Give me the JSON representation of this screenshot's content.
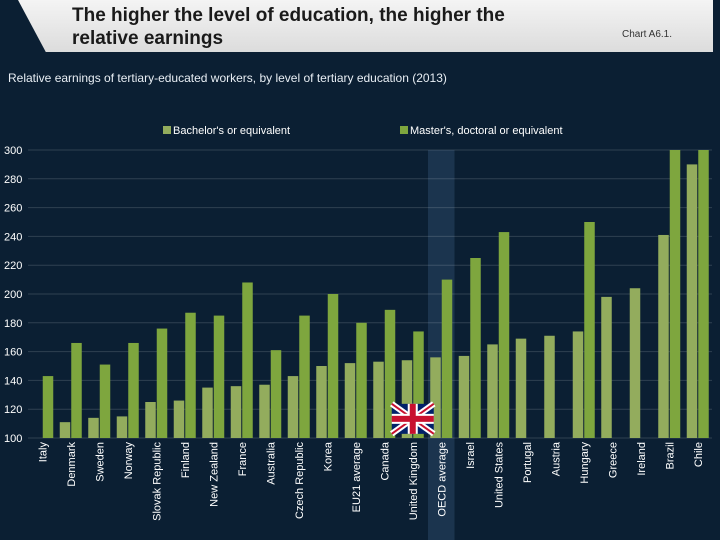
{
  "header": {
    "title_line1": "The higher the level of education, the higher the",
    "title_line2": "relative earnings",
    "chart_tag": "Chart A6.1."
  },
  "subtitle": "Relative earnings of tertiary-educated workers, by level of tertiary education (2013)",
  "colors": {
    "background": "#0b1f33",
    "bachelor": "#93ac5d",
    "master": "#7ea63e",
    "highlight": "#1f3a55"
  },
  "chart_data": {
    "type": "bar",
    "categories": [
      "Italy",
      "Denmark",
      "Sweden",
      "Norway",
      "Slovak Republic",
      "Finland",
      "New Zealand",
      "France",
      "Australia",
      "Czech Republic",
      "Korea",
      "EU21 average",
      "Canada",
      "United Kingdom",
      "OECD average",
      "Israel",
      "United States",
      "Portugal",
      "Austria",
      "Hungary",
      "Greece",
      "Ireland",
      "Brazil",
      "Chile"
    ],
    "series": [
      {
        "name": "Bachelor's or equivalent",
        "values": [
          null,
          111,
          114,
          115,
          125,
          126,
          135,
          136,
          137,
          143,
          150,
          152,
          153,
          154,
          156,
          157,
          165,
          169,
          171,
          174,
          198,
          204,
          241,
          290
        ]
      },
      {
        "name": "Master's, doctoral or equivalent",
        "values": [
          143,
          166,
          151,
          166,
          176,
          187,
          185,
          208,
          161,
          185,
          200,
          180,
          189,
          174,
          210,
          225,
          243,
          null,
          null,
          250,
          null,
          null,
          300,
          300
        ]
      }
    ],
    "ylim": [
      100,
      300
    ],
    "yticks": [
      100,
      120,
      140,
      160,
      180,
      200,
      220,
      240,
      260,
      280,
      300
    ],
    "highlight_category": "OECD average",
    "flag_category": "United Kingdom",
    "legend_position": "top",
    "grid": true
  }
}
